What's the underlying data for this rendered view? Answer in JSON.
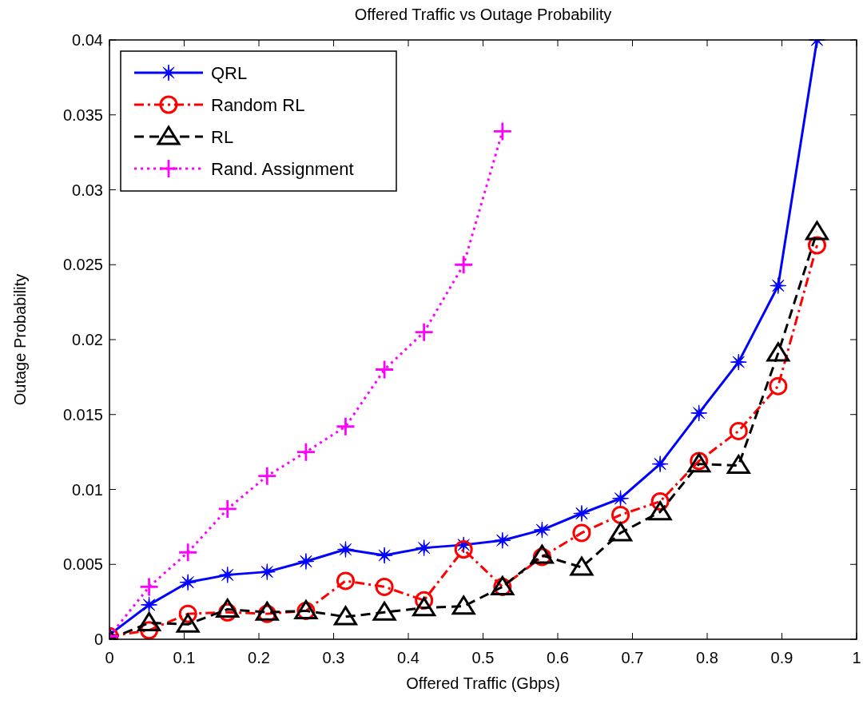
{
  "chart_data": {
    "type": "line",
    "title": "Offered Traffic vs Outage Probability",
    "xlabel": "Offered Traffic (Gbps)",
    "ylabel": "Outage Probability",
    "x": [
      0,
      0.053,
      0.105,
      0.158,
      0.211,
      0.263,
      0.316,
      0.368,
      0.421,
      0.474,
      0.526,
      0.579,
      0.632,
      0.684,
      0.737,
      0.789,
      0.842,
      0.895,
      0.947
    ],
    "series": [
      {
        "name": "QRL",
        "color": "#0000ff",
        "marker": "star",
        "line_style": "solid",
        "values": [
          0.0003,
          0.0023,
          0.0038,
          0.0043,
          0.0045,
          0.0052,
          0.006,
          0.0056,
          0.0061,
          0.0063,
          0.0066,
          0.0073,
          0.0084,
          0.0094,
          0.0117,
          0.0151,
          0.0185,
          0.0236,
          0.04
        ]
      },
      {
        "name": "Random RL",
        "color": "#ff0000",
        "marker": "circle",
        "line_style": "dashdot",
        "values": [
          0.0002,
          0.0006,
          0.0017,
          0.0018,
          0.0017,
          0.0019,
          0.0039,
          0.0035,
          0.0026,
          0.006,
          0.0035,
          0.0055,
          0.0071,
          0.0083,
          0.0092,
          0.0119,
          0.0139,
          0.0169,
          0.0263
        ]
      },
      {
        "name": "RL",
        "color": "#000000",
        "marker": "triangle",
        "line_style": "dashed",
        "values": [
          0,
          0.0011,
          0.001,
          0.002,
          0.0018,
          0.0019,
          0.0015,
          0.0018,
          0.0021,
          0.0022,
          0.0035,
          0.0056,
          0.0048,
          0.0071,
          0.0085,
          0.0117,
          0.0116,
          0.0191,
          0.0272
        ]
      },
      {
        "name": "Rand. Assignment",
        "color": "#ff00ff",
        "marker": "cross",
        "line_style": "dotted",
        "values": [
          0.0002,
          0.0035,
          0.0058,
          0.0087,
          0.0109,
          0.0125,
          0.0142,
          0.018,
          0.0205,
          0.025,
          0.0339,
          null,
          null,
          null,
          null,
          null,
          null,
          null,
          null
        ]
      }
    ],
    "xlim": [
      0,
      1
    ],
    "xticks": [
      0,
      0.1,
      0.2,
      0.3,
      0.4,
      0.5,
      0.6,
      0.7,
      0.8,
      0.9,
      1
    ],
    "ylim": [
      0,
      0.04
    ],
    "yticks": [
      0,
      0.005,
      0.01,
      0.015,
      0.02,
      0.025,
      0.03,
      0.035,
      0.04
    ],
    "grid": false,
    "legend": "top left"
  }
}
